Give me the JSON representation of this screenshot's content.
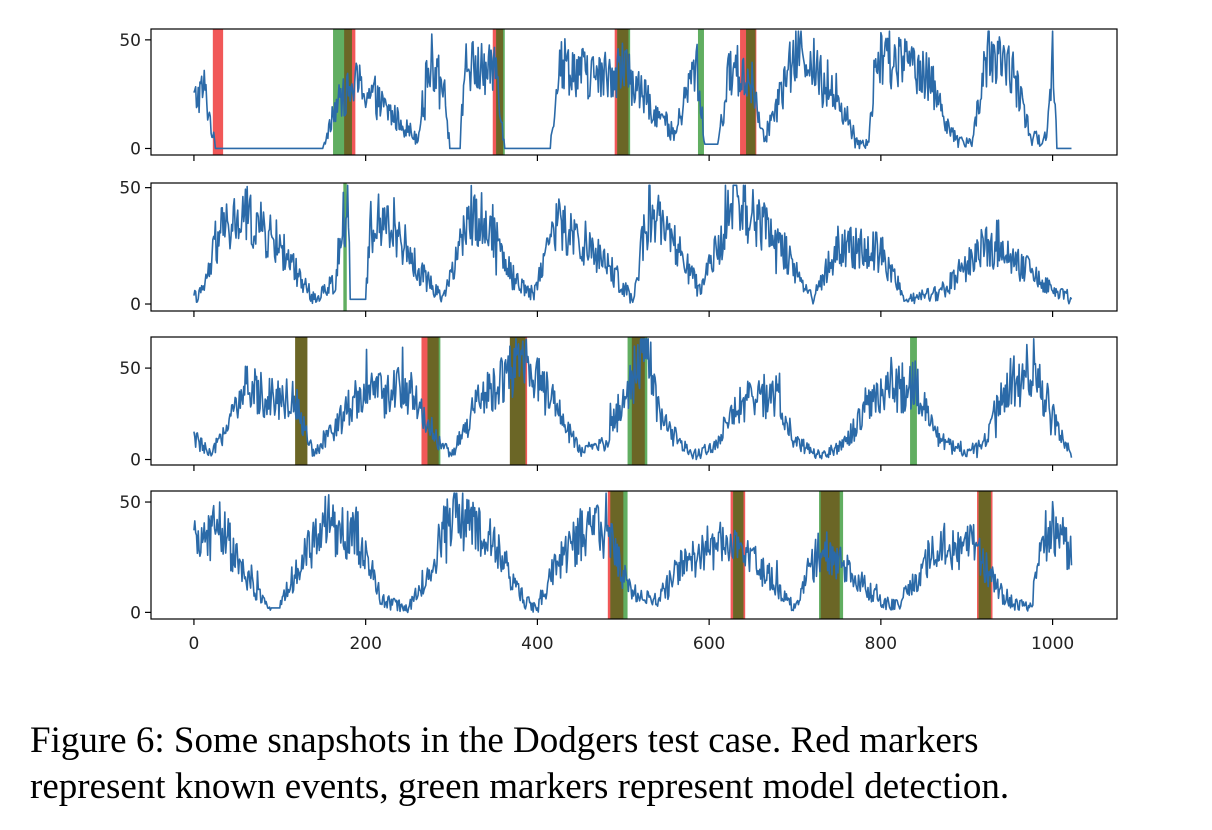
{
  "caption": {
    "line1": "Figure 6:  Some snapshots in the Dodgers test case.  Red markers",
    "line2": "represent known events, green markers represent model detection."
  },
  "colors": {
    "series": "#2b6aa8",
    "known_event": "#ee3b3b",
    "detection": "#3a9a3a",
    "overlap": "#6b6425"
  },
  "chart_data": [
    {
      "type": "line",
      "x_range": [
        0,
        1022
      ],
      "xlim": [
        -50,
        1075
      ],
      "ylim": [
        -3,
        55
      ],
      "yticks": [
        0,
        50
      ],
      "xticks": [],
      "known_events": [
        [
          22,
          34
        ],
        [
          175,
          188
        ],
        [
          348,
          360
        ],
        [
          490,
          506
        ],
        [
          636,
          655
        ]
      ],
      "detections": [
        [
          162,
          184
        ],
        [
          352,
          362
        ],
        [
          493,
          508
        ],
        [
          587,
          594
        ],
        [
          643,
          654
        ]
      ],
      "profile": [
        [
          0,
          22
        ],
        [
          12,
          28
        ],
        [
          25,
          0
        ],
        [
          30,
          0
        ],
        [
          150,
          0
        ],
        [
          162,
          18
        ],
        [
          190,
          30
        ],
        [
          260,
          5
        ],
        [
          275,
          40
        ],
        [
          290,
          35
        ],
        [
          298,
          0
        ],
        [
          310,
          0
        ],
        [
          315,
          38
        ],
        [
          345,
          35
        ],
        [
          352,
          40
        ],
        [
          362,
          0
        ],
        [
          395,
          0
        ],
        [
          415,
          0
        ],
        [
          425,
          40
        ],
        [
          470,
          32
        ],
        [
          500,
          38
        ],
        [
          515,
          28
        ],
        [
          560,
          6
        ],
        [
          585,
          40
        ],
        [
          595,
          2
        ],
        [
          610,
          2
        ],
        [
          625,
          38
        ],
        [
          650,
          30
        ],
        [
          665,
          5
        ],
        [
          705,
          48
        ],
        [
          760,
          15
        ],
        [
          770,
          3
        ],
        [
          785,
          3
        ],
        [
          795,
          40
        ],
        [
          850,
          38
        ],
        [
          885,
          5
        ],
        [
          905,
          2
        ],
        [
          920,
          35
        ],
        [
          950,
          40
        ],
        [
          975,
          5
        ],
        [
          990,
          3
        ],
        [
          995,
          15
        ],
        [
          1000,
          45
        ],
        [
          1005,
          0
        ],
        [
          1022,
          0
        ]
      ]
    },
    {
      "type": "line",
      "x_range": [
        0,
        1022
      ],
      "xlim": [
        -50,
        1075
      ],
      "ylim": [
        -3,
        52
      ],
      "yticks": [
        0,
        50
      ],
      "xticks": [],
      "known_events": [],
      "detections": [
        [
          174,
          178
        ]
      ],
      "profile": [
        [
          0,
          3
        ],
        [
          10,
          5
        ],
        [
          30,
          30
        ],
        [
          60,
          38
        ],
        [
          100,
          25
        ],
        [
          140,
          2
        ],
        [
          165,
          10
        ],
        [
          180,
          48
        ],
        [
          182,
          2
        ],
        [
          200,
          2
        ],
        [
          205,
          28
        ],
        [
          230,
          36
        ],
        [
          260,
          15
        ],
        [
          290,
          3
        ],
        [
          325,
          40
        ],
        [
          350,
          30
        ],
        [
          370,
          12
        ],
        [
          395,
          4
        ],
        [
          420,
          35
        ],
        [
          480,
          18
        ],
        [
          510,
          2
        ],
        [
          530,
          40
        ],
        [
          560,
          25
        ],
        [
          590,
          5
        ],
        [
          630,
          45
        ],
        [
          690,
          22
        ],
        [
          720,
          2
        ],
        [
          750,
          25
        ],
        [
          800,
          22
        ],
        [
          830,
          2
        ],
        [
          870,
          5
        ],
        [
          920,
          25
        ],
        [
          970,
          15
        ],
        [
          1000,
          5
        ],
        [
          1022,
          2
        ]
      ]
    },
    {
      "type": "line",
      "x_range": [
        0,
        1022
      ],
      "xlim": [
        -50,
        1075
      ],
      "ylim": [
        -3,
        67
      ],
      "yticks": [
        0,
        50
      ],
      "xticks": [],
      "known_events": [
        [
          118,
          132
        ],
        [
          265,
          285
        ],
        [
          368,
          388
        ],
        [
          510,
          525
        ]
      ],
      "detections": [
        [
          118,
          132
        ],
        [
          272,
          287
        ],
        [
          368,
          386
        ],
        [
          505,
          528
        ],
        [
          834,
          842
        ]
      ],
      "profile": [
        [
          0,
          12
        ],
        [
          20,
          2
        ],
        [
          40,
          20
        ],
        [
          60,
          38
        ],
        [
          120,
          32
        ],
        [
          140,
          2
        ],
        [
          160,
          15
        ],
        [
          190,
          35
        ],
        [
          250,
          38
        ],
        [
          285,
          10
        ],
        [
          300,
          2
        ],
        [
          330,
          30
        ],
        [
          380,
          55
        ],
        [
          420,
          30
        ],
        [
          450,
          4
        ],
        [
          480,
          10
        ],
        [
          500,
          32
        ],
        [
          525,
          62
        ],
        [
          545,
          20
        ],
        [
          580,
          2
        ],
        [
          600,
          5
        ],
        [
          640,
          32
        ],
        [
          680,
          32
        ],
        [
          700,
          10
        ],
        [
          730,
          2
        ],
        [
          760,
          10
        ],
        [
          800,
          38
        ],
        [
          840,
          40
        ],
        [
          870,
          10
        ],
        [
          900,
          3
        ],
        [
          920,
          10
        ],
        [
          950,
          45
        ],
        [
          985,
          42
        ],
        [
          1010,
          12
        ],
        [
          1022,
          3
        ]
      ]
    },
    {
      "type": "line",
      "x_range": [
        0,
        1022
      ],
      "xlim": [
        -50,
        1075
      ],
      "ylim": [
        -3,
        55
      ],
      "yticks": [
        0,
        50
      ],
      "xticks": [
        0,
        200,
        400,
        600,
        800,
        1000
      ],
      "known_events": [
        [
          482,
          500
        ],
        [
          625,
          642
        ],
        [
          730,
          752
        ],
        [
          912,
          930
        ]
      ],
      "detections": [
        [
          485,
          505
        ],
        [
          628,
          640
        ],
        [
          728,
          756
        ],
        [
          914,
          928
        ]
      ],
      "profile": [
        [
          0,
          30
        ],
        [
          30,
          40
        ],
        [
          60,
          15
        ],
        [
          90,
          2
        ],
        [
          100,
          2
        ],
        [
          120,
          20
        ],
        [
          155,
          40
        ],
        [
          190,
          35
        ],
        [
          220,
          5
        ],
        [
          250,
          2
        ],
        [
          270,
          15
        ],
        [
          300,
          45
        ],
        [
          350,
          30
        ],
        [
          385,
          5
        ],
        [
          400,
          2
        ],
        [
          420,
          20
        ],
        [
          450,
          35
        ],
        [
          480,
          38
        ],
        [
          495,
          22
        ],
        [
          510,
          8
        ],
        [
          540,
          5
        ],
        [
          565,
          20
        ],
        [
          600,
          28
        ],
        [
          630,
          35
        ],
        [
          660,
          20
        ],
        [
          700,
          2
        ],
        [
          730,
          30
        ],
        [
          760,
          20
        ],
        [
          800,
          5
        ],
        [
          820,
          3
        ],
        [
          840,
          15
        ],
        [
          870,
          30
        ],
        [
          910,
          30
        ],
        [
          945,
          5
        ],
        [
          975,
          3
        ],
        [
          985,
          25
        ],
        [
          1000,
          40
        ],
        [
          1022,
          25
        ]
      ]
    }
  ]
}
